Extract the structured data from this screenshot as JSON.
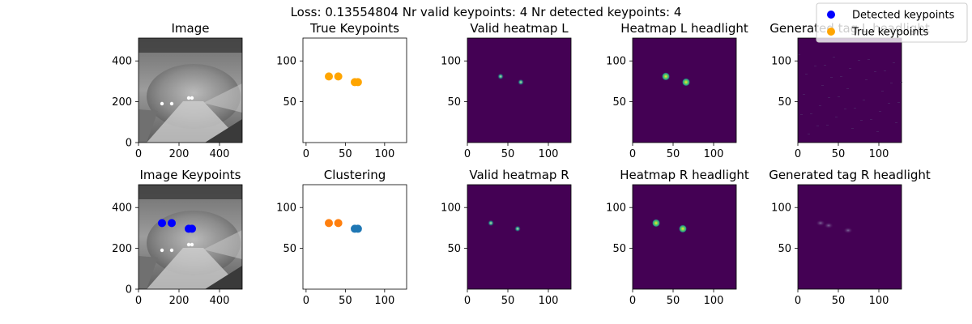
{
  "suptitle": "Loss: 0.13554804 Nr valid keypoints: 4 Nr detected keypoints: 4",
  "legend": {
    "placement": "top-right",
    "entries": [
      {
        "label": "Detected keypoints",
        "color": "#0000ff"
      },
      {
        "label": "True keypoints",
        "color": "#ffa500"
      }
    ]
  },
  "chart_data": [
    {
      "type": "image",
      "title": "Image",
      "content": "grayscale night road photo",
      "xticks": [
        "0",
        "200",
        "400"
      ],
      "yticks": [
        "0",
        "200",
        "400"
      ],
      "xlim": [
        0,
        512
      ],
      "ylim": [
        512,
        0
      ],
      "points": []
    },
    {
      "type": "scatter",
      "title": "True Keypoints",
      "xticks": [
        "0",
        "50",
        "100"
      ],
      "yticks": [
        "50",
        "100"
      ],
      "xlim": [
        -4,
        128
      ],
      "ylim": [
        128,
        0
      ],
      "points": [
        {
          "x": 29,
          "y": 81,
          "color": "#ffa500"
        },
        {
          "x": 41,
          "y": 81,
          "color": "#ffa500"
        },
        {
          "x": 62,
          "y": 74,
          "color": "#ffa500"
        },
        {
          "x": 66,
          "y": 74,
          "color": "#ffa500"
        }
      ]
    },
    {
      "type": "heatmap",
      "title": "Valid heatmap L",
      "xticks": [
        "0",
        "50",
        "100"
      ],
      "yticks": [
        "50",
        "100"
      ],
      "xlim": [
        0,
        128
      ],
      "ylim": [
        128,
        0
      ],
      "points": [
        {
          "x": 41,
          "y": 81,
          "intensity": "peak"
        },
        {
          "x": 66,
          "y": 74,
          "intensity": "peak"
        }
      ]
    },
    {
      "type": "heatmap",
      "title": "Heatmap L headlight",
      "xticks": [
        "0",
        "50",
        "100"
      ],
      "yticks": [
        "50",
        "100"
      ],
      "xlim": [
        0,
        128
      ],
      "ylim": [
        128,
        0
      ],
      "points": [
        {
          "x": 41,
          "y": 81,
          "intensity": "peak"
        },
        {
          "x": 66,
          "y": 74,
          "intensity": "peak"
        }
      ]
    },
    {
      "type": "heatmap",
      "title": "Generated tag L headlight",
      "xticks": [
        "0",
        "50",
        "100"
      ],
      "yticks": [
        "50",
        "100"
      ],
      "xlim": [
        0,
        128
      ],
      "ylim": [
        128,
        0
      ],
      "points": []
    },
    {
      "type": "image",
      "title": "Image Keypoints",
      "content": "grayscale night road photo",
      "xticks": [
        "0",
        "200",
        "400"
      ],
      "yticks": [
        "0",
        "200",
        "400"
      ],
      "xlim": [
        0,
        512
      ],
      "ylim": [
        512,
        0
      ],
      "points": [
        {
          "x": 116,
          "y": 324,
          "color": "#0000ff"
        },
        {
          "x": 164,
          "y": 324,
          "color": "#0000ff"
        },
        {
          "x": 248,
          "y": 296,
          "color": "#0000ff"
        },
        {
          "x": 264,
          "y": 296,
          "color": "#0000ff"
        }
      ]
    },
    {
      "type": "scatter",
      "title": "Clustering",
      "xticks": [
        "0",
        "50",
        "100"
      ],
      "yticks": [
        "50",
        "100"
      ],
      "xlim": [
        -4,
        128
      ],
      "ylim": [
        128,
        0
      ],
      "points": [
        {
          "x": 29,
          "y": 81,
          "color": "#ff7f0e"
        },
        {
          "x": 41,
          "y": 81,
          "color": "#ff7f0e"
        },
        {
          "x": 62,
          "y": 74,
          "color": "#1f77b4"
        },
        {
          "x": 66,
          "y": 74,
          "color": "#1f77b4"
        }
      ]
    },
    {
      "type": "heatmap",
      "title": "Valid heatmap R",
      "xticks": [
        "0",
        "50",
        "100"
      ],
      "yticks": [
        "50",
        "100"
      ],
      "xlim": [
        0,
        128
      ],
      "ylim": [
        128,
        0
      ],
      "points": [
        {
          "x": 29,
          "y": 81,
          "intensity": "peak"
        },
        {
          "x": 62,
          "y": 74,
          "intensity": "peak"
        }
      ]
    },
    {
      "type": "heatmap",
      "title": "Heatmap R headlight",
      "xticks": [
        "0",
        "50",
        "100"
      ],
      "yticks": [
        "50",
        "100"
      ],
      "xlim": [
        0,
        128
      ],
      "ylim": [
        128,
        0
      ],
      "points": [
        {
          "x": 29,
          "y": 81,
          "intensity": "peak"
        },
        {
          "x": 62,
          "y": 74,
          "intensity": "peak"
        }
      ]
    },
    {
      "type": "heatmap",
      "title": "Generated tag R headlight",
      "xticks": [
        "0",
        "50",
        "100"
      ],
      "yticks": [
        "50",
        "100"
      ],
      "xlim": [
        0,
        128
      ],
      "ylim": [
        128,
        0
      ],
      "points": [
        {
          "x": 28,
          "y": 81,
          "intensity": "faint"
        },
        {
          "x": 38,
          "y": 78,
          "intensity": "faint"
        },
        {
          "x": 62,
          "y": 72,
          "intensity": "faint"
        }
      ]
    }
  ],
  "colors": {
    "heatmap_bg": "#440154",
    "heatmap_peak": "#fde725",
    "heatmap_mid": "#21918c",
    "heatmap_faint": "#6c5a8a"
  }
}
